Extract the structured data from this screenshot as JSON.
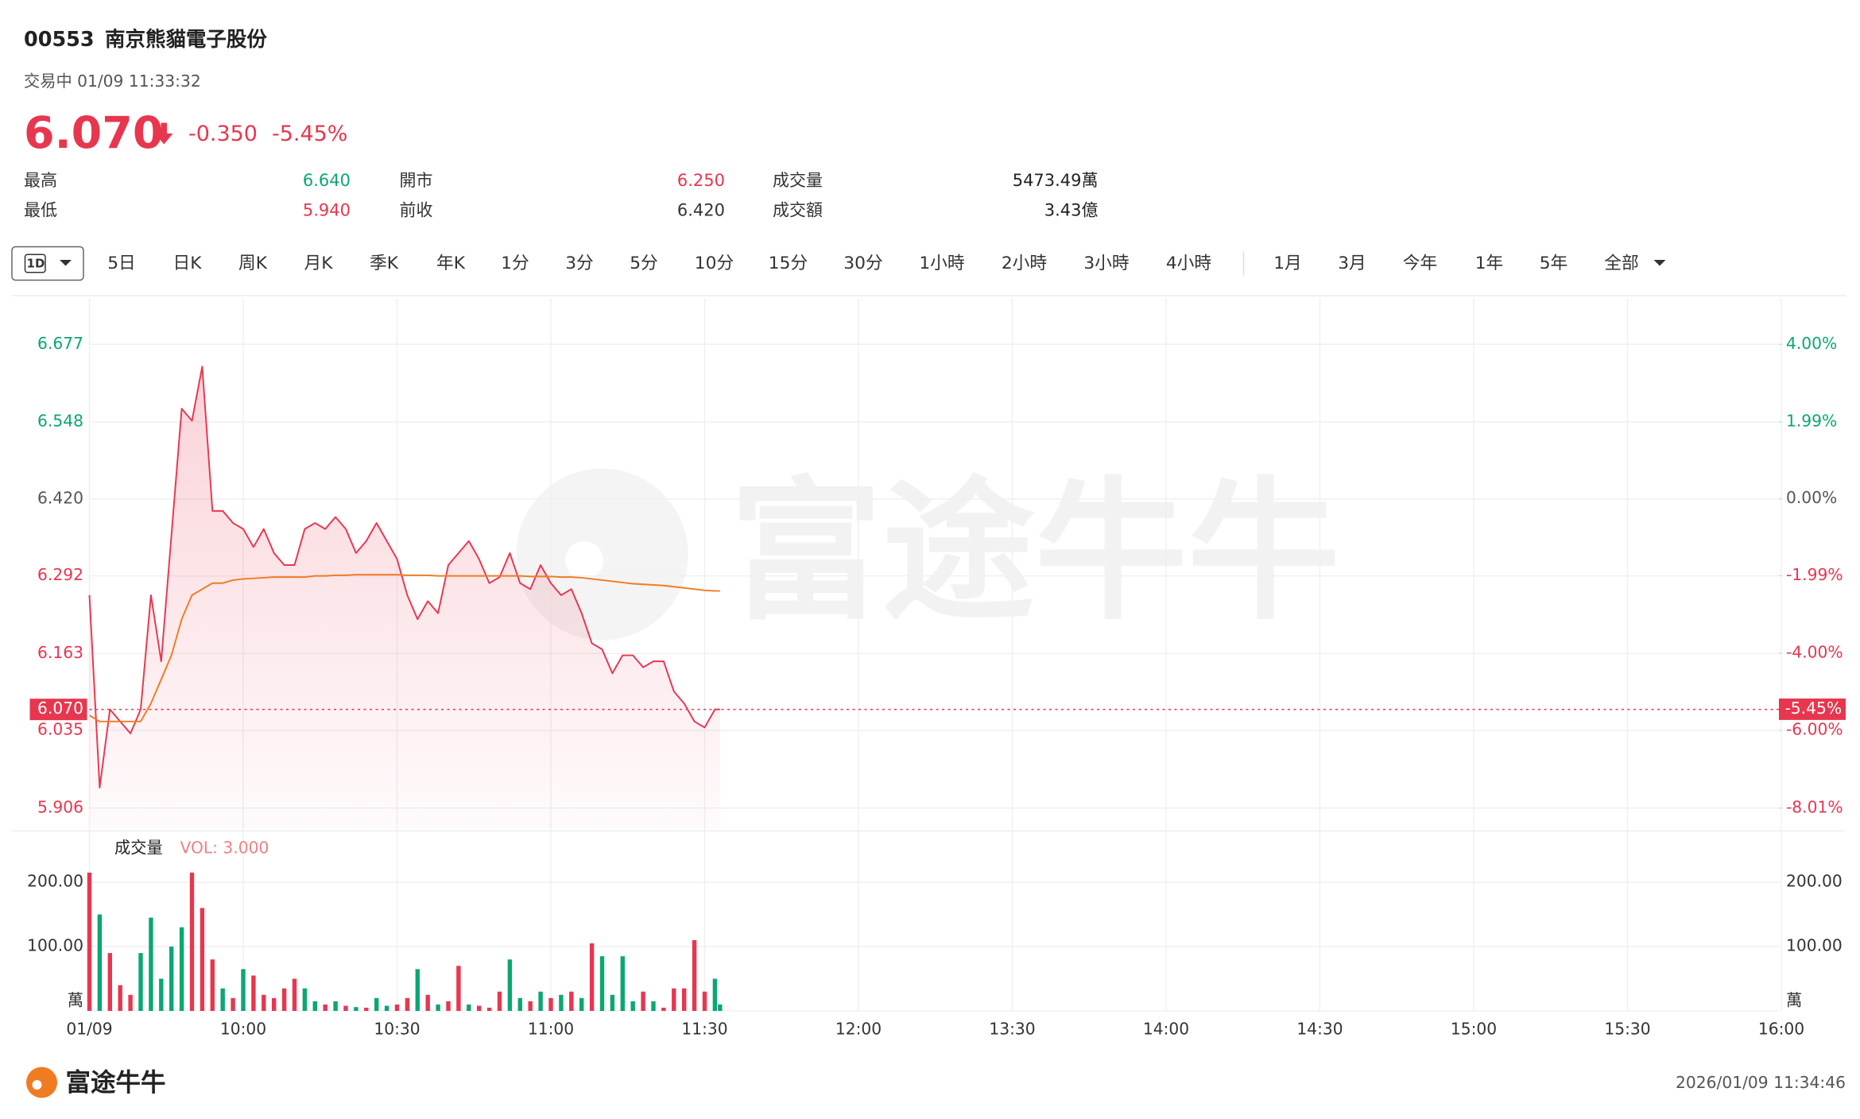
{
  "header": {
    "code": "00553",
    "name": "南京熊貓電子股份",
    "status": "交易中 01/09 11:33:32",
    "price": "6.070",
    "change": "-0.350",
    "change_pct": "-5.45%"
  },
  "stats": [
    [
      "最高",
      "6.640",
      "開市",
      "6.250",
      "成交量",
      "5473.49萬"
    ],
    [
      "最低",
      "5.940",
      "前收",
      "6.420",
      "成交額",
      "3.43億"
    ]
  ],
  "tabs": [
    "1D",
    "5日",
    "日K",
    "周K",
    "月K",
    "季K",
    "年K",
    "1分",
    "3分",
    "5分",
    "10分",
    "15分",
    "30分",
    "1小時",
    "2小時",
    "3小時",
    "4小時",
    "1月",
    "3月",
    "今年",
    "1年",
    "5年",
    "全部"
  ],
  "chart_data": [
    {
      "type": "line",
      "x": [
        "09:30",
        "09:32",
        "09:34",
        "09:36",
        "09:38",
        "09:40",
        "09:42",
        "09:44",
        "09:46",
        "09:48",
        "09:50",
        "09:52",
        "09:54",
        "09:56",
        "09:58",
        "10:00",
        "10:02",
        "10:04",
        "10:06",
        "10:08",
        "10:10",
        "10:12",
        "10:14",
        "10:16",
        "10:18",
        "10:20",
        "10:22",
        "10:24",
        "10:26",
        "10:28",
        "10:30",
        "10:32",
        "10:34",
        "10:36",
        "10:38",
        "10:40",
        "10:42",
        "10:44",
        "10:46",
        "10:48",
        "10:50",
        "10:52",
        "10:54",
        "10:56",
        "10:58",
        "11:00",
        "11:02",
        "11:04",
        "11:06",
        "11:08",
        "11:10",
        "11:12",
        "11:14",
        "11:16",
        "11:18",
        "11:20",
        "11:22",
        "11:24",
        "11:26",
        "11:28",
        "11:30",
        "11:32",
        "11:33"
      ],
      "series": [
        {
          "color": "#e8364f",
          "values": [
            6.26,
            5.94,
            6.07,
            6.05,
            6.03,
            6.07,
            6.26,
            6.15,
            6.36,
            6.57,
            6.55,
            6.64,
            6.4,
            6.4,
            6.38,
            6.37,
            6.34,
            6.37,
            6.33,
            6.31,
            6.31,
            6.37,
            6.38,
            6.37,
            6.39,
            6.37,
            6.33,
            6.35,
            6.38,
            6.35,
            6.32,
            6.26,
            6.22,
            6.25,
            6.23,
            6.31,
            6.33,
            6.35,
            6.32,
            6.28,
            6.29,
            6.33,
            6.28,
            6.27,
            6.31,
            6.28,
            6.26,
            6.27,
            6.23,
            6.18,
            6.17,
            6.13,
            6.16,
            6.16,
            6.14,
            6.15,
            6.15,
            6.1,
            6.08,
            6.05,
            6.04,
            6.07,
            6.07
          ]
        },
        {
          "color": "#f07c22",
          "values": [
            6.06,
            6.05,
            6.05,
            6.05,
            6.05,
            6.05,
            6.08,
            6.12,
            6.16,
            6.22,
            6.26,
            6.27,
            6.28,
            6.28,
            6.285,
            6.287,
            6.288,
            6.289,
            6.29,
            6.29,
            6.29,
            6.29,
            6.292,
            6.292,
            6.293,
            6.293,
            6.294,
            6.294,
            6.294,
            6.294,
            6.294,
            6.293,
            6.293,
            6.293,
            6.292,
            6.292,
            6.292,
            6.292,
            6.292,
            6.292,
            6.292,
            6.292,
            6.292,
            6.291,
            6.291,
            6.291,
            6.29,
            6.29,
            6.289,
            6.287,
            6.285,
            6.283,
            6.281,
            6.279,
            6.278,
            6.277,
            6.276,
            6.274,
            6.272,
            6.27,
            6.268,
            6.267,
            6.267
          ]
        }
      ],
      "last": {
        "value": 6.07,
        "label": "6.070"
      },
      "last_pct": {
        "value": -5.45,
        "label": "-5.45%"
      },
      "ylim": [
        5.872,
        6.754
      ],
      "yticks": [
        5.906,
        6.035,
        6.163,
        6.292,
        {
          "value": 6.42,
          "label": "6.420"
        },
        6.548,
        6.677
      ],
      "y2lim": [
        -8.54,
        5.2
      ],
      "y2ticks": [
        {
          "value": -8.01,
          "label": "-8.01%"
        },
        {
          "value": -6.0,
          "label": "-6.00%"
        },
        {
          "value": -4.0,
          "label": "-4.00%"
        },
        {
          "value": -1.99,
          "label": "-1.99%"
        },
        {
          "value": 0,
          "label": "0.00%"
        },
        {
          "value": 1.99,
          "label": "1.99%"
        },
        {
          "value": 4.0,
          "label": "4.00%"
        }
      ],
      "grid": true
    },
    {
      "type": "bar",
      "title": "成交量",
      "subtitle": "VOL: 3.000",
      "values": [
        215,
        150,
        90,
        40,
        25,
        90,
        145,
        50,
        100,
        130,
        215,
        160,
        80,
        35,
        20,
        65,
        55,
        25,
        20,
        35,
        50,
        35,
        15,
        10,
        15,
        8,
        6,
        5,
        20,
        8,
        10,
        20,
        65,
        25,
        10,
        15,
        70,
        10,
        8,
        5,
        30,
        80,
        20,
        15,
        30,
        20,
        25,
        30,
        20,
        105,
        85,
        25,
        85,
        15,
        30,
        15,
        5,
        35,
        35,
        110,
        30,
        50,
        10
      ],
      "colors": [
        "#e8364f",
        "#0aa774",
        "#e8364f",
        "#e8364f",
        "#e8364f",
        "#0aa774",
        "#0aa774",
        "#0aa774",
        "#0aa774",
        "#0aa774",
        "#e8364f",
        "#e8364f",
        "#e8364f",
        "#0aa774",
        "#e8364f",
        "#0aa774",
        "#e8364f",
        "#e8364f",
        "#e8364f",
        "#e8364f",
        "#e8364f",
        "#0aa774",
        "#0aa774",
        "#e8364f",
        "#0aa774",
        "#e8364f",
        "#0aa774",
        "#e8364f",
        "#0aa774",
        "#0aa774",
        "#e8364f",
        "#e8364f",
        "#0aa774",
        "#e8364f",
        "#0aa774",
        "#e8364f",
        "#e8364f",
        "#0aa774",
        "#e8364f",
        "#e8364f",
        "#e8364f",
        "#0aa774",
        "#0aa774",
        "#e8364f",
        "#0aa774",
        "#e8364f",
        "#0aa774",
        "#e8364f",
        "#0aa774",
        "#e8364f",
        "#0aa774",
        "#0aa774",
        "#0aa774",
        "#0aa774",
        "#e8364f",
        "#0aa774",
        "#e8364f",
        "#e8364f",
        "#e8364f",
        "#e8364f",
        "#e8364f",
        "#0aa774",
        "#0aa774"
      ],
      "ylim": [
        0,
        265
      ],
      "yticks": [
        {
          "value": 0,
          "label": "萬"
        },
        {
          "value": 100,
          "label": "100.00"
        },
        {
          "value": 200,
          "label": "200.00"
        }
      ],
      "xticks": [
        {
          "value": "09:30",
          "label": "01/09"
        },
        "10:00",
        "10:30",
        "11:00",
        "11:30",
        "12:00",
        "13:30",
        "14:00",
        "14:30",
        "15:00",
        "15:30",
        "16:00"
      ]
    }
  ],
  "footer": {
    "brand": "富途牛牛",
    "timestamp": "2026/01/09 11:34:46"
  }
}
